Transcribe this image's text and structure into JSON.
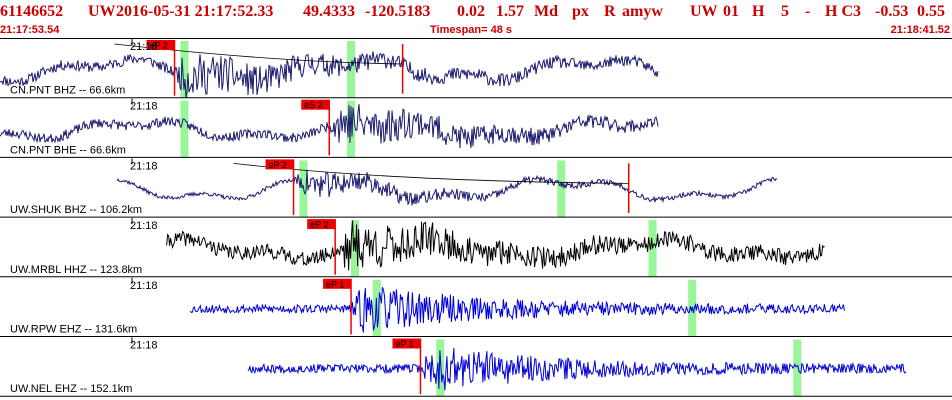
{
  "header": {
    "event_id": "61146652",
    "network": "UW",
    "datetime": "2016-05-31 21:17:52.33",
    "lat": "49.4333",
    "lon": "-120.5183",
    "depth": "0.02",
    "magnitude": "1.57",
    "mag_type": "Md",
    "event_type": "px",
    "review": "R",
    "author": "amyw",
    "source": "UW",
    "version": "01",
    "flag": "H",
    "num": "5",
    "dash": "-",
    "quality": "H C3",
    "v1": "-0.53",
    "v2": "0.55",
    "start_time": "21:17:53.54",
    "timespan": "Timespan=  48 s",
    "end_time": "21:18:41.52"
  },
  "colors": {
    "header_text": "#cc0000",
    "pick_box": "#ee0000",
    "pick_window": "#98f598",
    "trace_dark": "#1a1a6e",
    "trace_black": "#000000",
    "trace_blue": "#0000dd",
    "grid": "#000000"
  },
  "traces": [
    {
      "minute_label": "21:18",
      "station_label": "CN.PNT BHZ -- 66.6km",
      "pick_label": "eP 2",
      "color": "#1a1a6e",
      "data_start_s": 0,
      "data_end_s": 33.2,
      "pick_s": 8.8,
      "pick_windows_s": [
        9.3,
        17.7
      ],
      "coda_curve": true,
      "coda_end_s": 20.3,
      "seed": 11,
      "noise_amp": 0.22,
      "burst_amp": 0.85,
      "wave_amp": 0.35
    },
    {
      "minute_label": "21:18",
      "station_label": "CN.PNT BHE -- 66.6km",
      "pick_label": "eS 2",
      "color": "#1a1a6e",
      "data_start_s": 0,
      "data_end_s": 33.2,
      "pick_s": 16.6,
      "pick_windows_s": [
        9.3,
        17.7
      ],
      "coda_curve": false,
      "seed": 23,
      "noise_amp": 0.2,
      "burst_amp": 0.9,
      "wave_amp": 0.3
    },
    {
      "minute_label": "21:18",
      "station_label": "UW.SHUK BHZ -- 106.2km",
      "pick_label": "eP 2",
      "color": "#1a1a6e",
      "data_start_s": 5.9,
      "data_end_s": 39.2,
      "pick_s": 14.8,
      "pick_windows_s": [
        15.3,
        28.3
      ],
      "coda_curve": true,
      "coda_end_s": 31.7,
      "seed": 37,
      "noise_amp": 0.08,
      "burst_amp": 0.6,
      "wave_amp": 0.35
    },
    {
      "minute_label": "21:18",
      "station_label": "UW.MRBL HHZ -- 123.8km",
      "pick_label": "eP 2",
      "color": "#000000",
      "data_start_s": 8.4,
      "data_end_s": 41.6,
      "pick_s": 16.9,
      "pick_windows_s": [
        17.9,
        32.9
      ],
      "coda_curve": false,
      "seed": 41,
      "noise_amp": 0.3,
      "burst_amp": 0.95,
      "wave_amp": 0.3
    },
    {
      "minute_label": "21:18",
      "station_label": "UW.RPW EHZ -- 131.6km",
      "pick_label": "eP 1",
      "color": "#0000dd",
      "data_start_s": 9.6,
      "data_end_s": 42.6,
      "pick_s": 17.7,
      "pick_windows_s": [
        19.0,
        34.9
      ],
      "coda_curve": false,
      "seed": 53,
      "noise_amp": 0.18,
      "burst_amp": 0.95,
      "wave_amp": 0.0
    },
    {
      "minute_label": "21:18",
      "station_label": "UW.NEL EHZ -- 152.1km",
      "pick_label": "eP 1",
      "color": "#0000dd",
      "data_start_s": 12.5,
      "data_end_s": 45.7,
      "pick_s": 21.2,
      "pick_windows_s": [
        22.2,
        40.2
      ],
      "coda_curve": false,
      "seed": 67,
      "noise_amp": 0.18,
      "burst_amp": 0.95,
      "wave_amp": 0.0
    }
  ]
}
